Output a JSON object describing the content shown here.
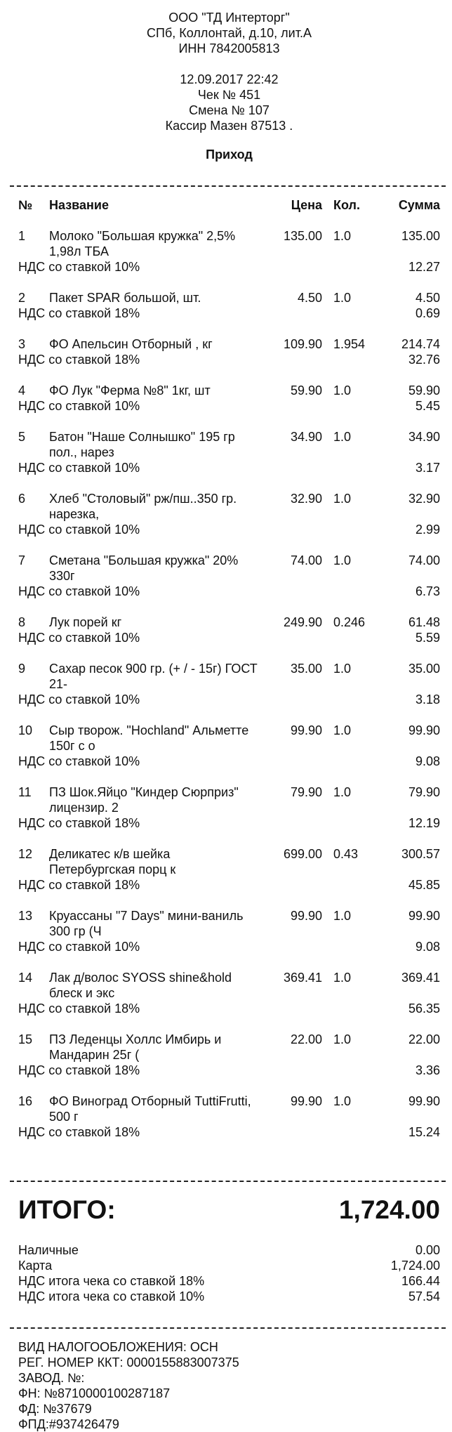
{
  "header": {
    "company": "ООО \"ТД Интерторг\"",
    "address": "СПб, Коллонтай, д.10, лит.А",
    "inn": "ИНН 7842005813",
    "datetime": "12.09.2017 22:42",
    "check_no": "Чек № 451",
    "shift": "Смена № 107",
    "cashier": "Кассир Мазен 87513 ."
  },
  "operation_type": "Приход",
  "table_headers": {
    "no": "№",
    "name": "Название",
    "price": "Цена",
    "qty": "Кол.",
    "sum": "Сумма"
  },
  "items": [
    {
      "no": "1",
      "name": "Молоко \"Большая кружка\" 2,5% 1,98л ТБА",
      "price": "135.00",
      "qty": "1.0",
      "sum": "135.00",
      "vat_label": "НДС со ставкой 10%",
      "vat": "12.27"
    },
    {
      "no": "2",
      "name": "Пакет SPAR большой, шт.",
      "price": "4.50",
      "qty": "1.0",
      "sum": "4.50",
      "vat_label": "НДС со ставкой 18%",
      "vat": "0.69"
    },
    {
      "no": "3",
      "name": "ФО Апельсин Отборный , кг",
      "price": "109.90",
      "qty": "1.954",
      "sum": "214.74",
      "vat_label": "НДС со ставкой 18%",
      "vat": "32.76"
    },
    {
      "no": "4",
      "name": "ФО Лук \"Ферма №8\" 1кг, шт",
      "price": "59.90",
      "qty": "1.0",
      "sum": "59.90",
      "vat_label": "НДС со ставкой 10%",
      "vat": "5.45"
    },
    {
      "no": "5",
      "name": "Батон \"Наше Солнышко\" 195 гр пол., нарез",
      "price": "34.90",
      "qty": "1.0",
      "sum": "34.90",
      "vat_label": "НДС со ставкой 10%",
      "vat": "3.17"
    },
    {
      "no": "6",
      "name": "Хлеб \"Столовый\" рж/пш..350 гр. нарезка,",
      "price": "32.90",
      "qty": "1.0",
      "sum": "32.90",
      "vat_label": "НДС со ставкой 10%",
      "vat": "2.99"
    },
    {
      "no": "7",
      "name": "Сметана \"Большая кружка\" 20% 330г",
      "price": "74.00",
      "qty": "1.0",
      "sum": "74.00",
      "vat_label": "НДС со ставкой 10%",
      "vat": "6.73"
    },
    {
      "no": "8",
      "name": "Лук порей кг",
      "price": "249.90",
      "qty": "0.246",
      "sum": "61.48",
      "vat_label": "НДС со ставкой 10%",
      "vat": "5.59"
    },
    {
      "no": "9",
      "name": "Сахар песок 900 гр. (+ / - 15г) ГОСТ 21-",
      "price": "35.00",
      "qty": "1.0",
      "sum": "35.00",
      "vat_label": "НДС со ставкой 10%",
      "vat": "3.18"
    },
    {
      "no": "10",
      "name": "Сыр творож. \"Hochland\" Альметте 150г с о",
      "price": "99.90",
      "qty": "1.0",
      "sum": "99.90",
      "vat_label": "НДС со ставкой 10%",
      "vat": "9.08"
    },
    {
      "no": "11",
      "name": "ПЗ Шок.Яйцо \"Киндер Сюрприз\" лицензир. 2",
      "price": "79.90",
      "qty": "1.0",
      "sum": "79.90",
      "vat_label": "НДС со ставкой 18%",
      "vat": "12.19"
    },
    {
      "no": "12",
      "name": "Деликатес к/в шейка Петербургская порц к",
      "price": "699.00",
      "qty": "0.43",
      "sum": "300.57",
      "vat_label": "НДС со ставкой 18%",
      "vat": "45.85"
    },
    {
      "no": "13",
      "name": "Круассаны \"7 Days\" мини-ваниль 300 гр (Ч",
      "price": "99.90",
      "qty": "1.0",
      "sum": "99.90",
      "vat_label": "НДС со ставкой 10%",
      "vat": "9.08"
    },
    {
      "no": "14",
      "name": "Лак д/волос SYOSS shine&hold блеск и экс",
      "price": "369.41",
      "qty": "1.0",
      "sum": "369.41",
      "vat_label": "НДС со ставкой 18%",
      "vat": "56.35"
    },
    {
      "no": "15",
      "name": "ПЗ Леденцы Холлс Имбирь и Мандарин 25г (",
      "price": "22.00",
      "qty": "1.0",
      "sum": "22.00",
      "vat_label": "НДС со ставкой 18%",
      "vat": "3.36"
    },
    {
      "no": "16",
      "name": "ФО Виноград Отборный TuttiFrutti, 500 г",
      "price": "99.90",
      "qty": "1.0",
      "sum": "99.90",
      "vat_label": "НДС со ставкой 18%",
      "vat": "15.24"
    }
  ],
  "totals": {
    "label": "ИТОГО:",
    "value": "1,724.00",
    "rows": [
      {
        "label": "Наличные",
        "value": "0.00"
      },
      {
        "label": "Карта",
        "value": "1,724.00"
      },
      {
        "label": "НДС итога чека со ставкой 18%",
        "value": "166.44"
      },
      {
        "label": "НДС итога чека со ставкой 10%",
        "value": "57.54"
      }
    ]
  },
  "footer": {
    "tax_system": "ВИД НАЛОГООБЛОЖЕНИЯ: ОСН",
    "kkt_reg": "РЕГ. НОМЕР ККТ: 0000155883007375",
    "factory": "ЗАВОД. №:",
    "fn": "ФН: №8710000100287187",
    "fd": "ФД: №37679",
    "fpd": "ФПД:#937426479"
  }
}
